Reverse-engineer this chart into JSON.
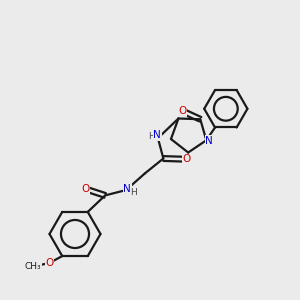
{
  "bg_color": "#ebebeb",
  "bond_color": "#1a1a1a",
  "atom_colors": {
    "N": "#0000cc",
    "O": "#cc0000",
    "C": "#1a1a1a",
    "H": "#444444"
  },
  "lw": 1.6
}
